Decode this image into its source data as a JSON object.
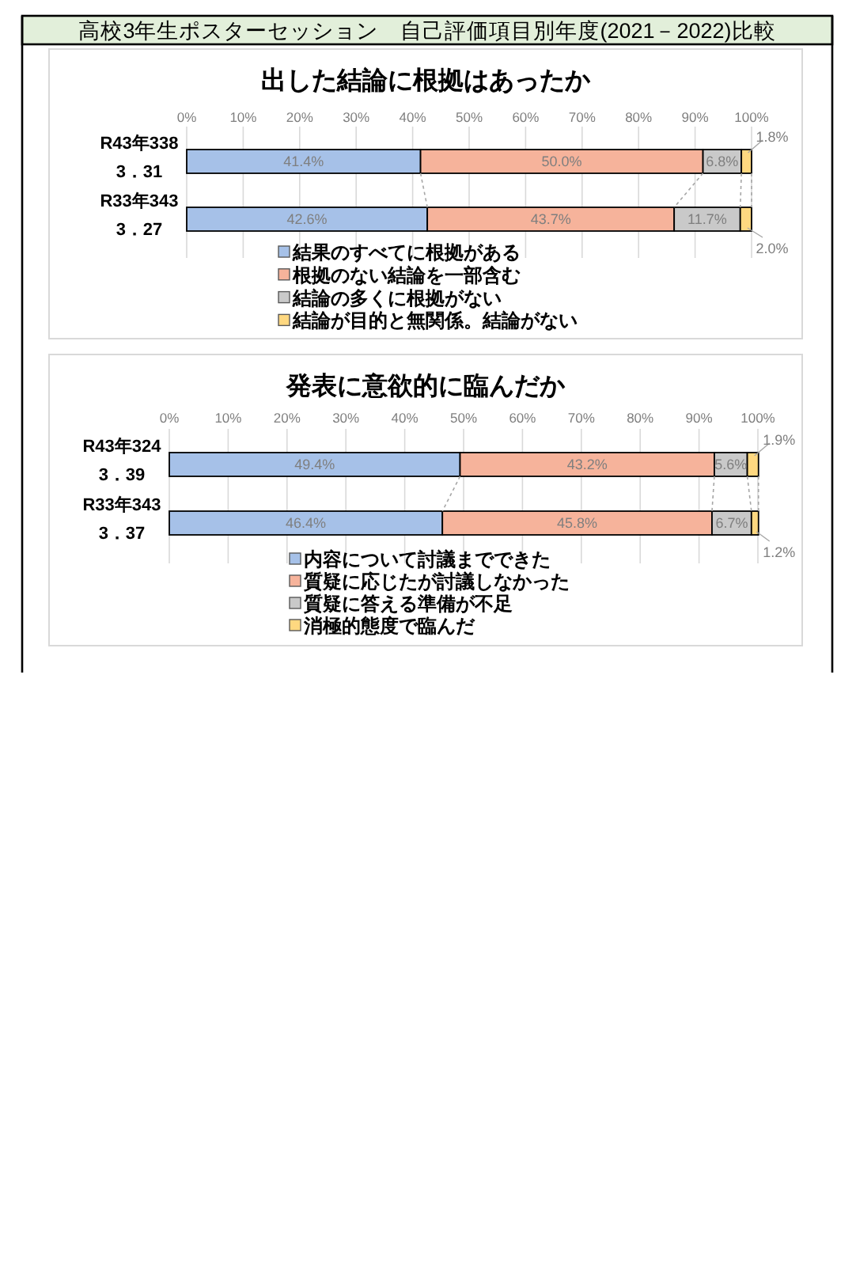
{
  "chart_data": [
    {
      "type": "other",
      "title": "高校3年生ポスターセッション　自己評価項目別年度(2021－2022)比較"
    },
    {
      "type": "bar",
      "orientation": "horizontal",
      "stacked": true,
      "title": "出した結論に根拠はあったか",
      "categories": [
        "R43年338\n3．31",
        "R33年343\n3．27"
      ],
      "series": [
        {
          "name": "結果のすべてに根拠がある",
          "color": "#a6c1e8",
          "values": [
            41.4,
            42.6
          ],
          "value_labels": [
            "41.4%",
            "42.6%"
          ]
        },
        {
          "name": "根拠のない結論を一部含む",
          "color": "#f6b39b",
          "values": [
            50.0,
            43.7
          ],
          "value_labels": [
            "50.0%",
            "43.7%"
          ]
        },
        {
          "name": "結論の多くに根拠がない",
          "color": "#c9c9c9",
          "values": [
            6.8,
            11.7
          ],
          "value_labels": [
            "6.8%",
            "11.7%"
          ]
        },
        {
          "name": "結論が目的と無関係。結論がない",
          "color": "#ffd880",
          "values": [
            1.8,
            2.0
          ],
          "value_labels": [
            "1.8%",
            "2.0%"
          ]
        }
      ],
      "xlim": [
        0,
        100
      ],
      "xticks": [
        {
          "value": 0,
          "label": "0%"
        },
        {
          "value": 10,
          "label": "10%"
        },
        {
          "value": 20,
          "label": "20%"
        },
        {
          "value": 30,
          "label": "30%"
        },
        {
          "value": 40,
          "label": "40%"
        },
        {
          "value": 50,
          "label": "50%"
        },
        {
          "value": 60,
          "label": "60%"
        },
        {
          "value": 70,
          "label": "70%"
        },
        {
          "value": 80,
          "label": "80%"
        },
        {
          "value": 90,
          "label": "90%"
        },
        {
          "value": 100,
          "label": "100%"
        }
      ],
      "grid": "x",
      "legend": "bottom"
    },
    {
      "type": "bar",
      "orientation": "horizontal",
      "stacked": true,
      "title": "発表に意欲的に臨んだか",
      "categories": [
        "R43年324\n3．39",
        "R33年343\n3．37"
      ],
      "series": [
        {
          "name": "内容について討議までできた",
          "color": "#a6c1e8",
          "values": [
            49.4,
            46.4
          ],
          "value_labels": [
            "49.4%",
            "46.4%"
          ]
        },
        {
          "name": "質疑に応じたが討議しなかった",
          "color": "#f6b39b",
          "values": [
            43.2,
            45.8
          ],
          "value_labels": [
            "43.2%",
            "45.8%"
          ]
        },
        {
          "name": "質疑に答える準備が不足",
          "color": "#c9c9c9",
          "values": [
            5.6,
            6.7
          ],
          "value_labels": [
            "5.6%",
            "6.7%"
          ]
        },
        {
          "name": "消極的態度で臨んだ",
          "color": "#ffd880",
          "values": [
            1.9,
            1.2
          ],
          "value_labels": [
            "1.9%",
            "1.2%"
          ]
        }
      ],
      "xlim": [
        0,
        100
      ],
      "xticks": [
        {
          "value": 0,
          "label": "0%"
        },
        {
          "value": 10,
          "label": "10%"
        },
        {
          "value": 20,
          "label": "20%"
        },
        {
          "value": 30,
          "label": "30%"
        },
        {
          "value": 40,
          "label": "40%"
        },
        {
          "value": 50,
          "label": "50%"
        },
        {
          "value": 60,
          "label": "60%"
        },
        {
          "value": 70,
          "label": "70%"
        },
        {
          "value": 80,
          "label": "80%"
        },
        {
          "value": 90,
          "label": "90%"
        },
        {
          "value": 100,
          "label": "100%"
        }
      ],
      "grid": "x",
      "legend": "bottom"
    }
  ]
}
